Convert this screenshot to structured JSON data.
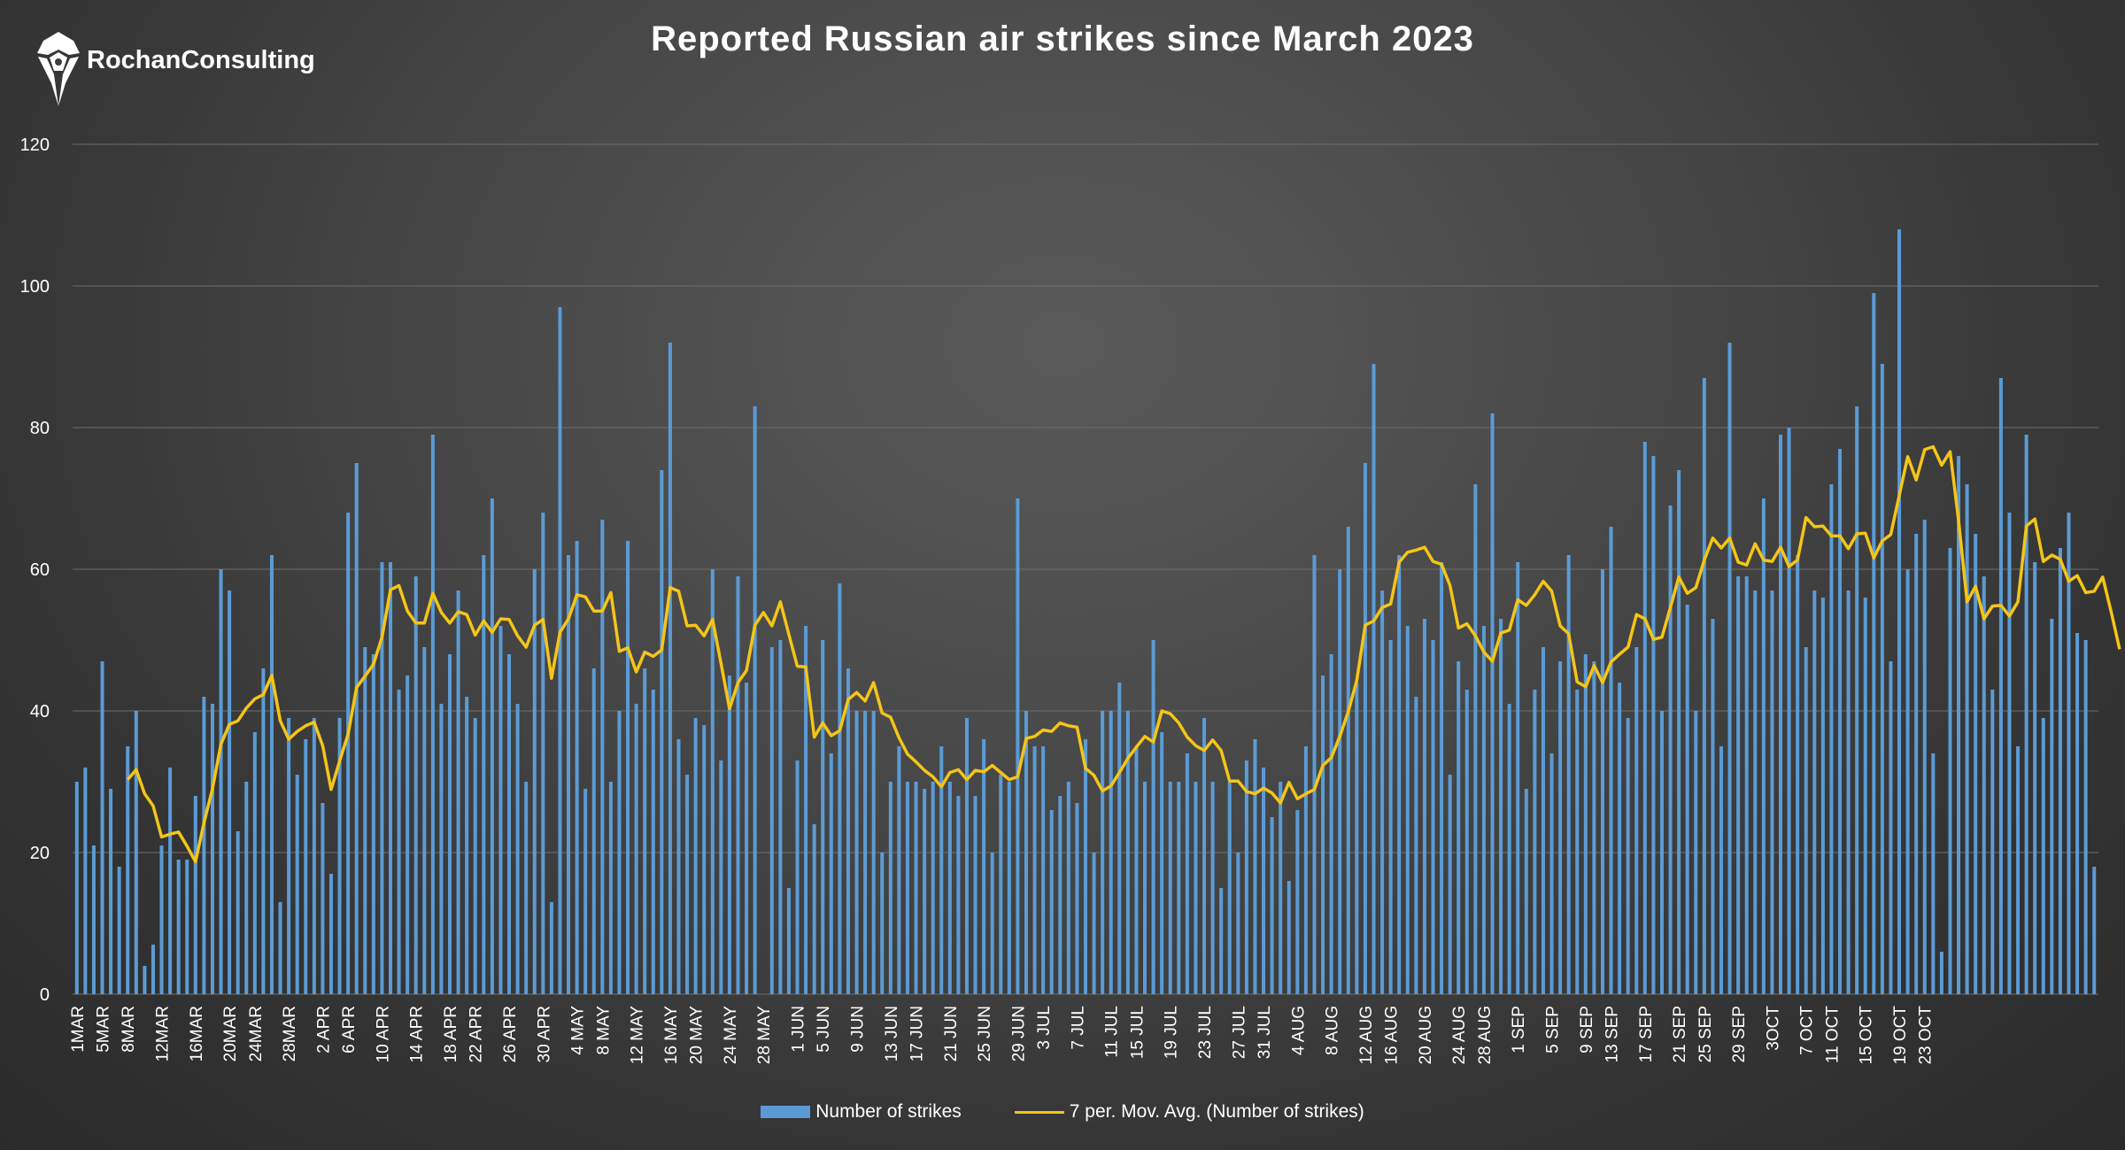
{
  "brand": {
    "name": "RochanConsulting",
    "logo_icon": "shield-pen-icon"
  },
  "colors": {
    "bar": "#5b9bd5",
    "line": "#f5c518",
    "grid": "#6e6e6e"
  },
  "chart_data": {
    "type": "bar",
    "title": "Reported Russian air strikes since March 2023",
    "xlabel": "",
    "ylabel": "",
    "ylim": [
      0,
      120
    ],
    "yticks": [
      "0",
      "20",
      "40",
      "60",
      "80",
      "100",
      "120"
    ],
    "grid": true,
    "legend_placement": "bottom",
    "x_tick_labels": [
      "1MAR",
      "5MAR",
      "8MAR",
      "12MAR",
      "16MAR",
      "20MAR",
      "24MAR",
      "28MAR",
      "2 APR",
      "6 APR",
      "10 APR",
      "14 APR",
      "18 APR",
      "22 APR",
      "26 APR",
      "30 APR",
      "4 MAY",
      "8 MAY",
      "12 MAY",
      "16 MAY",
      "20 MAY",
      "24 MAY",
      "28 MAY",
      "1 JUN",
      "5 JUN",
      "9 JUN",
      "13 JUN",
      "17 JUN",
      "21 JUN",
      "25 JUN",
      "29 JUN",
      "3 JUL",
      "7 JUL",
      "11 JUL",
      "15 JUL",
      "19 JUL",
      "23 JUL",
      "27 JUL",
      "31 JUL",
      "4 AUG",
      "8 AUG",
      "12 AUG",
      "16 AUG",
      "20 AUG",
      "24 AUG",
      "28 AUG",
      "1 SEP",
      "5 SEP",
      "9 SEP",
      "13 SEP",
      "17 SEP",
      "21 SEP",
      "25 SEP",
      "29 SEP",
      "3OCT",
      "7 OCT",
      "11 OCT",
      "15 OCT",
      "19 OCT",
      "23 OCT"
    ],
    "series": [
      {
        "name": "Number of strikes",
        "kind": "bar",
        "values": [
          30,
          32,
          21,
          47,
          29,
          18,
          35,
          40,
          4,
          7,
          21,
          32,
          19,
          19,
          28,
          42,
          41,
          60,
          57,
          23,
          30,
          37,
          46,
          62,
          13,
          39,
          31,
          36,
          39,
          27,
          17,
          39,
          68,
          75,
          49,
          48,
          61,
          61,
          43,
          45,
          59,
          49,
          79,
          41,
          48,
          57,
          42,
          39,
          62,
          70,
          52,
          48,
          41,
          30,
          60,
          68,
          13,
          97,
          62,
          64,
          29,
          46,
          67,
          30,
          40,
          64,
          41,
          46,
          43,
          74,
          92,
          36,
          31,
          39,
          38,
          60,
          33,
          45,
          59,
          44,
          83,
          0,
          49,
          50,
          15,
          33,
          52,
          24,
          50,
          34,
          58,
          46,
          40,
          40,
          40,
          20,
          30,
          35,
          30,
          30,
          29,
          30,
          35,
          30,
          28,
          39,
          28,
          36,
          20,
          31,
          30,
          70,
          40,
          35,
          35,
          26,
          28,
          30,
          27,
          36,
          20,
          40,
          40,
          44,
          40,
          35,
          30,
          50,
          37,
          30,
          30,
          34,
          30,
          39,
          30,
          15,
          30,
          20,
          33,
          36,
          32,
          25,
          30,
          16,
          26,
          35,
          62,
          45,
          48,
          60,
          66,
          44,
          75,
          89,
          57,
          50,
          62,
          52,
          42,
          53,
          50,
          61,
          31,
          47,
          43,
          72,
          52,
          82,
          53,
          41,
          61,
          29,
          43,
          49,
          34,
          47,
          62,
          43,
          48,
          47,
          60,
          66,
          44,
          39,
          49,
          78,
          76,
          40,
          69,
          74,
          55,
          40,
          87,
          53,
          35,
          92,
          59,
          59,
          57,
          70,
          57,
          79,
          80,
          62,
          49,
          57,
          56,
          72,
          77,
          57,
          83,
          56,
          99,
          89,
          47,
          108,
          60,
          65,
          67,
          34,
          6,
          63,
          76,
          72,
          65,
          59,
          43,
          87,
          68,
          35,
          79,
          61,
          39,
          53,
          63,
          68,
          51,
          50,
          18
        ]
      },
      {
        "name": "7 per. Mov. Avg. (Number of strikes)",
        "kind": "line",
        "start_index": 6,
        "values": [
          30.3,
          31.7,
          28.3,
          26.6,
          22.2,
          22.6,
          22.9,
          20.9,
          18.7,
          24.2,
          29.0,
          35.3,
          38.1,
          38.6,
          40.4,
          41.7,
          42.3,
          45.0,
          38.6,
          36.0,
          37.1,
          37.9,
          38.4,
          35.1,
          28.9,
          32.9,
          36.7,
          43.3,
          44.9,
          46.6,
          50.4,
          57.1,
          57.7,
          54.1,
          52.4,
          52.4,
          56.6,
          53.9,
          52.4,
          54.0,
          53.6,
          50.7,
          52.7,
          51.1,
          53.0,
          52.9,
          50.6,
          49.0,
          52.1,
          52.9,
          44.6,
          51.1,
          53.0,
          56.4,
          56.1,
          54.1,
          54.1,
          56.7,
          48.4,
          48.9,
          45.5,
          48.3,
          47.7,
          48.6,
          57.4,
          56.9,
          52.0,
          52.1,
          50.6,
          52.9,
          46.7,
          40.3,
          44.0,
          45.7,
          52.1,
          53.9,
          52.0,
          55.4,
          50.8,
          46.3,
          46.2,
          36.3,
          38.3,
          36.5,
          37.2,
          41.6,
          42.6,
          41.4,
          44.0,
          39.7,
          39.1,
          36.2,
          33.9,
          32.8,
          31.6,
          30.7,
          29.3,
          31.3,
          31.7,
          30.3,
          31.6,
          31.4,
          32.3,
          31.3,
          30.3,
          30.7,
          36.1,
          36.4,
          37.3,
          37.1,
          38.3,
          37.9,
          37.7,
          31.9,
          30.9,
          28.7,
          29.4,
          31.3,
          33.3,
          34.9,
          36.4,
          35.6,
          40.0,
          39.6,
          38.3,
          36.3,
          35.1,
          34.4,
          35.9,
          34.4,
          30.1,
          30.1,
          28.6,
          28.3,
          29.1,
          28.4,
          27.0,
          29.9,
          27.6,
          28.3,
          28.9,
          32.3,
          33.4,
          36.4,
          39.9,
          44.3,
          52.1,
          52.7,
          54.6,
          55.1,
          61.0,
          62.4,
          62.7,
          63.1,
          61.1,
          60.7,
          57.7,
          51.7,
          52.3,
          50.6,
          48.3,
          47.0,
          51.0,
          51.4,
          55.7,
          54.9,
          56.4,
          58.3,
          56.9,
          52.0,
          50.9,
          44.1,
          43.4,
          46.4,
          44.0,
          46.9,
          48.0,
          49.0,
          53.6,
          53.0,
          50.1,
          50.4,
          54.6,
          58.9,
          56.6,
          57.4,
          61.3,
          64.4,
          63.0,
          64.4,
          61.0,
          60.6,
          63.6,
          61.3,
          61.1,
          63.1,
          60.4,
          61.3,
          67.3,
          66.0,
          66.1,
          64.7,
          64.7,
          62.9,
          65.0,
          65.1,
          61.6,
          64.0,
          64.9,
          70.4,
          75.9,
          72.6,
          76.9,
          77.3,
          74.7,
          76.6,
          66.9,
          55.4,
          57.6,
          53.0,
          54.8,
          54.9,
          53.4,
          55.4,
          66.1,
          67.1,
          61.1,
          62.0,
          61.4,
          58.3,
          59.1,
          56.7,
          56.9,
          58.9,
          54.0,
          48.7
        ]
      }
    ]
  }
}
